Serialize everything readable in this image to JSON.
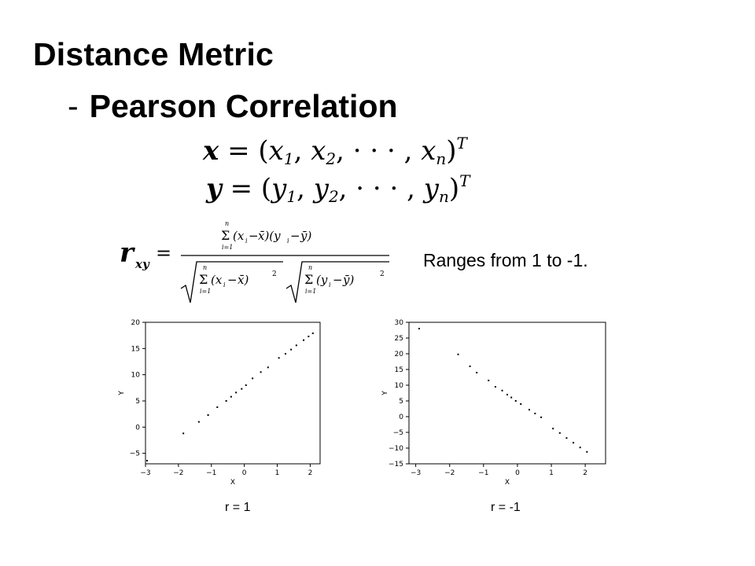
{
  "slide": {
    "title": "Distance Metric",
    "dash": "-",
    "subtitle": "Pearson Correlation",
    "ranges_text": "Ranges from 1 to -1."
  },
  "formula": {
    "x_vector": "x = (x1, x2, ··· , xn)T",
    "y_vector": "y = (y1, y2, ··· , yn)T",
    "r_xy": "r_xy = Σ_{i=1}^{n}(x_i − x̄)(y_i − ȳ) / ( √Σ_{i=1}^{n}(x_i − x̄)^2 · √Σ_{i=1}^{n}(y_i − ȳ)^2 )"
  },
  "captions": {
    "left": "r = 1",
    "right": "r = -1"
  },
  "chart_data": [
    {
      "type": "scatter",
      "title": "",
      "xlabel": "X",
      "ylabel": "Y",
      "xlim": [
        -3,
        2.3
      ],
      "ylim": [
        -7,
        20
      ],
      "xticks": [
        -3,
        -2,
        -1,
        0,
        1,
        2
      ],
      "yticks": [
        -5,
        0,
        5,
        10,
        15,
        20
      ],
      "x": [
        -2.95,
        -1.85,
        -1.38,
        -1.1,
        -0.82,
        -0.55,
        -0.4,
        -0.25,
        -0.08,
        0.05,
        0.25,
        0.5,
        0.72,
        1.05,
        1.25,
        1.42,
        1.58,
        1.8,
        1.95,
        2.08
      ],
      "y": [
        -6.4,
        -1.2,
        1.0,
        2.3,
        3.8,
        5.0,
        5.8,
        6.6,
        7.3,
        8.0,
        9.3,
        10.5,
        11.4,
        13.2,
        14.0,
        14.8,
        15.6,
        16.6,
        17.3,
        17.9
      ]
    },
    {
      "type": "scatter",
      "title": "",
      "xlabel": "X",
      "ylabel": "Y",
      "xlim": [
        -3.2,
        2.6
      ],
      "ylim": [
        -15,
        30
      ],
      "xticks": [
        -3,
        -2,
        -1,
        0,
        1,
        2
      ],
      "yticks": [
        -15,
        -10,
        -5,
        0,
        5,
        10,
        15,
        20,
        25,
        30
      ],
      "x": [
        -2.9,
        -1.75,
        -1.4,
        -1.2,
        -0.85,
        -0.65,
        -0.45,
        -0.3,
        -0.18,
        -0.05,
        0.1,
        0.35,
        0.52,
        0.7,
        1.05,
        1.25,
        1.45,
        1.65,
        1.85,
        2.05
      ],
      "y": [
        28.0,
        19.8,
        16.0,
        14.0,
        11.5,
        9.5,
        8.3,
        7.0,
        6.1,
        5.0,
        4.0,
        2.2,
        1.0,
        -0.2,
        -3.8,
        -5.2,
        -6.8,
        -8.3,
        -9.8,
        -11.2
      ]
    }
  ]
}
